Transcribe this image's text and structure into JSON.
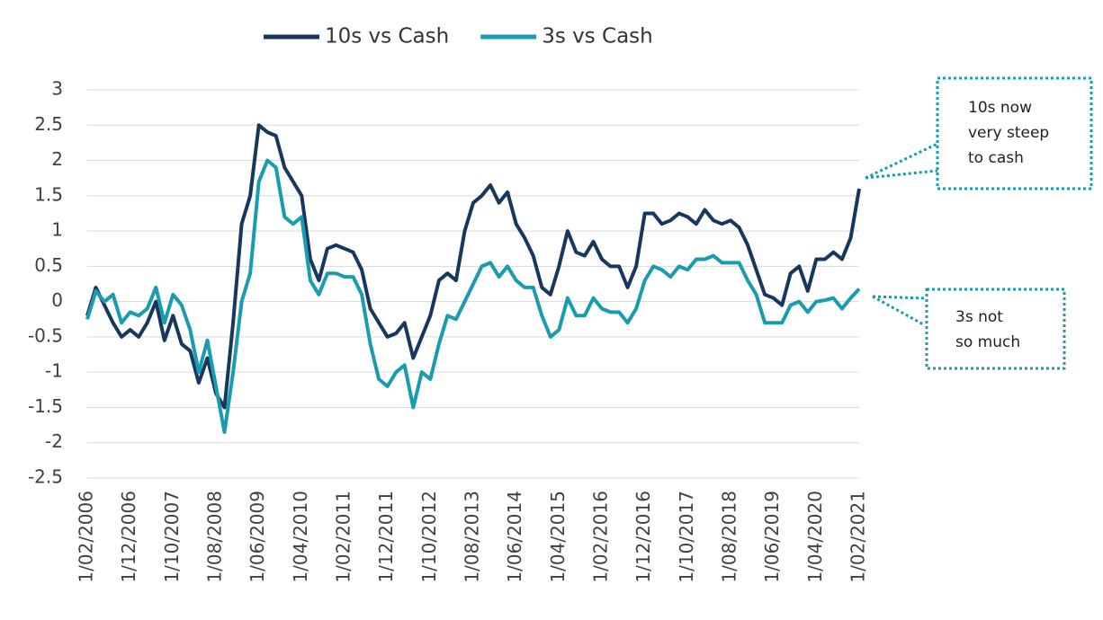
{
  "chart_data": {
    "type": "line",
    "categories": [
      "1/02/2006",
      null,
      null,
      null,
      null,
      "1/12/2006",
      null,
      null,
      null,
      null,
      "1/10/2007",
      null,
      null,
      null,
      null,
      "1/08/2008",
      null,
      null,
      null,
      null,
      "1/06/2009",
      null,
      null,
      null,
      null,
      "1/04/2010",
      null,
      null,
      null,
      null,
      "1/02/2011",
      null,
      null,
      null,
      null,
      "1/12/2011",
      null,
      null,
      null,
      null,
      "1/10/2012",
      null,
      null,
      null,
      null,
      "1/08/2013",
      null,
      null,
      null,
      null,
      "1/06/2014",
      null,
      null,
      null,
      null,
      "1/04/2015",
      null,
      null,
      null,
      null,
      "1/02/2016",
      null,
      null,
      null,
      null,
      "1/12/2016",
      null,
      null,
      null,
      null,
      "1/10/2017",
      null,
      null,
      null,
      null,
      "1/08/2018",
      null,
      null,
      null,
      null,
      "1/06/2019",
      null,
      null,
      null,
      null,
      "1/04/2020",
      null,
      null,
      null,
      null,
      "1/02/2021"
    ],
    "series": [
      {
        "name": "10s vs Cash",
        "color": "#17375e",
        "values": [
          -0.2,
          0.2,
          -0.05,
          -0.3,
          -0.5,
          -0.4,
          -0.5,
          -0.3,
          0.0,
          -0.55,
          -0.2,
          -0.6,
          -0.7,
          -1.15,
          -0.8,
          -1.3,
          -1.5,
          -0.3,
          1.1,
          1.5,
          2.5,
          2.4,
          2.35,
          1.9,
          1.7,
          1.5,
          0.6,
          0.3,
          0.75,
          0.8,
          0.75,
          0.7,
          0.45,
          -0.1,
          -0.3,
          -0.5,
          -0.45,
          -0.3,
          -0.8,
          -0.5,
          -0.2,
          0.3,
          0.4,
          0.3,
          1.0,
          1.4,
          1.5,
          1.65,
          1.4,
          1.55,
          1.1,
          0.9,
          0.65,
          0.2,
          0.1,
          0.5,
          1.0,
          0.7,
          0.65,
          0.85,
          0.6,
          0.5,
          0.5,
          0.2,
          0.5,
          1.25,
          1.25,
          1.1,
          1.15,
          1.25,
          1.2,
          1.1,
          1.3,
          1.15,
          1.1,
          1.15,
          1.05,
          0.8,
          0.45,
          0.1,
          0.05,
          -0.05,
          0.4,
          0.5,
          0.15,
          0.6,
          0.6,
          0.7,
          0.6,
          0.9,
          1.6
        ]
      },
      {
        "name": "3s vs Cash",
        "color": "#1a9bb0",
        "values": [
          -0.25,
          0.15,
          0.0,
          0.1,
          -0.3,
          -0.15,
          -0.2,
          -0.1,
          0.2,
          -0.3,
          0.1,
          -0.05,
          -0.4,
          -1.0,
          -0.55,
          -1.2,
          -1.85,
          -1.0,
          0.0,
          0.4,
          1.7,
          2.0,
          1.9,
          1.2,
          1.1,
          1.2,
          0.3,
          0.1,
          0.4,
          0.4,
          0.35,
          0.35,
          0.1,
          -0.6,
          -1.1,
          -1.2,
          -1.0,
          -0.9,
          -1.5,
          -1.0,
          -1.1,
          -0.6,
          -0.2,
          -0.25,
          0.0,
          0.25,
          0.5,
          0.55,
          0.35,
          0.5,
          0.3,
          0.2,
          0.2,
          -0.2,
          -0.5,
          -0.4,
          0.05,
          -0.2,
          -0.2,
          0.05,
          -0.1,
          -0.15,
          -0.15,
          -0.3,
          -0.1,
          0.3,
          0.5,
          0.45,
          0.35,
          0.5,
          0.45,
          0.6,
          0.6,
          0.65,
          0.55,
          0.55,
          0.55,
          0.3,
          0.1,
          -0.3,
          -0.3,
          -0.3,
          -0.05,
          0.0,
          -0.15,
          0.0,
          0.02,
          0.05,
          -0.1,
          0.05,
          0.18
        ]
      }
    ],
    "ylim": [
      -2.5,
      3
    ],
    "yticks": [
      3,
      2.5,
      2,
      1.5,
      1,
      0.5,
      0,
      -0.5,
      -1,
      -1.5,
      -2,
      -2.5
    ],
    "grid": true,
    "legend": "top",
    "annotations": [
      {
        "lines": [
          "10s now",
          "very steep",
          "to cash"
        ]
      },
      {
        "lines": [
          "3s not",
          "so much"
        ]
      }
    ]
  }
}
